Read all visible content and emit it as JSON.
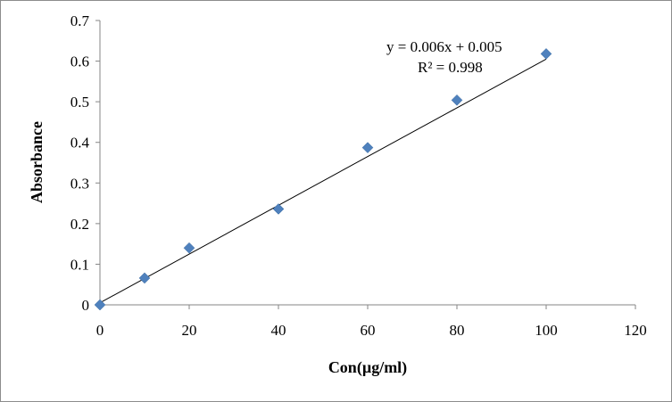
{
  "chart_data": {
    "type": "scatter",
    "title": "",
    "xlabel": "Con(µg/ml)",
    "ylabel": "Absorbance",
    "xlim": [
      0,
      120
    ],
    "ylim": [
      0,
      0.7
    ],
    "x_ticks": [
      0,
      20,
      40,
      60,
      80,
      100,
      120
    ],
    "y_ticks": [
      0,
      0.1,
      0.2,
      0.3,
      0.4,
      0.5,
      0.6,
      0.7
    ],
    "x_tick_labels": [
      "0",
      "20",
      "40",
      "60",
      "80",
      "100",
      "120"
    ],
    "y_tick_labels": [
      "0",
      "0.1",
      "0.2",
      "0.3",
      "0.4",
      "0.5",
      "0.6",
      "0.7"
    ],
    "grid": false,
    "legend": "none",
    "series": [
      {
        "marker": "diamond",
        "color": "#4f81bd",
        "x": [
          0,
          10,
          20,
          40,
          60,
          80,
          100
        ],
        "y": [
          0,
          0.066,
          0.14,
          0.236,
          0.387,
          0.504,
          0.618
        ]
      }
    ],
    "trendline": {
      "slope": 0.006,
      "intercept": 0.005,
      "x_range": [
        0,
        100
      ],
      "color": "#000000"
    },
    "annotations": [
      {
        "text": "y = 0.006x + 0.005"
      },
      {
        "text": "R² = 0.998"
      }
    ]
  }
}
